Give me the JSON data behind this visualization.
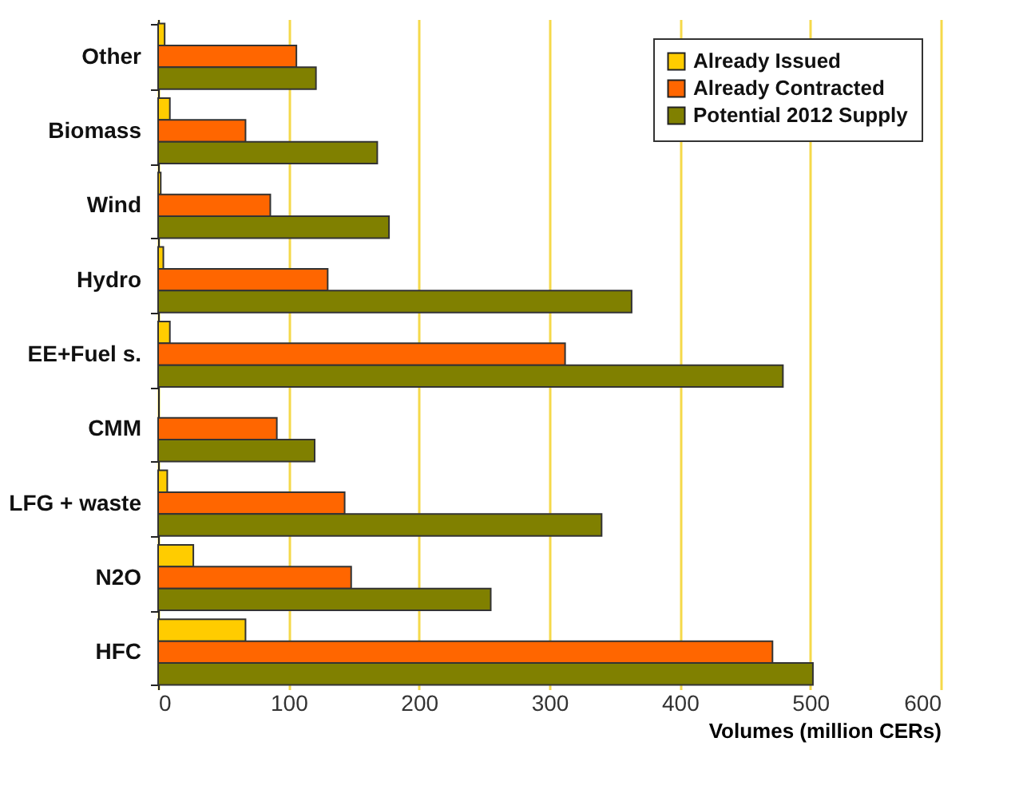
{
  "chart_data": {
    "type": "bar",
    "orientation": "horizontal",
    "categories": [
      "Other",
      "Biomass",
      "Wind",
      "Hydro",
      "EE+Fuel s.",
      "CMM",
      "LFG + waste",
      "N2O",
      "HFC"
    ],
    "series": [
      {
        "name": "Already Issued",
        "color": "#ffcc00",
        "values": [
          5,
          9,
          2,
          4,
          9,
          null,
          7,
          27,
          67
        ]
      },
      {
        "name": "Already Contracted",
        "color": "#ff6600",
        "values": [
          106,
          67,
          86,
          130,
          312,
          91,
          143,
          148,
          471
        ]
      },
      {
        "name": "Potential 2012 Supply",
        "color": "#808000",
        "values": [
          121,
          168,
          177,
          363,
          479,
          120,
          340,
          255,
          502
        ]
      }
    ],
    "xlabel": "Volumes (million CERs)",
    "xlim": [
      0,
      600
    ],
    "xticks": [
      0,
      100,
      200,
      300,
      400,
      500,
      600
    ],
    "grid": "x",
    "legend": "top right"
  }
}
